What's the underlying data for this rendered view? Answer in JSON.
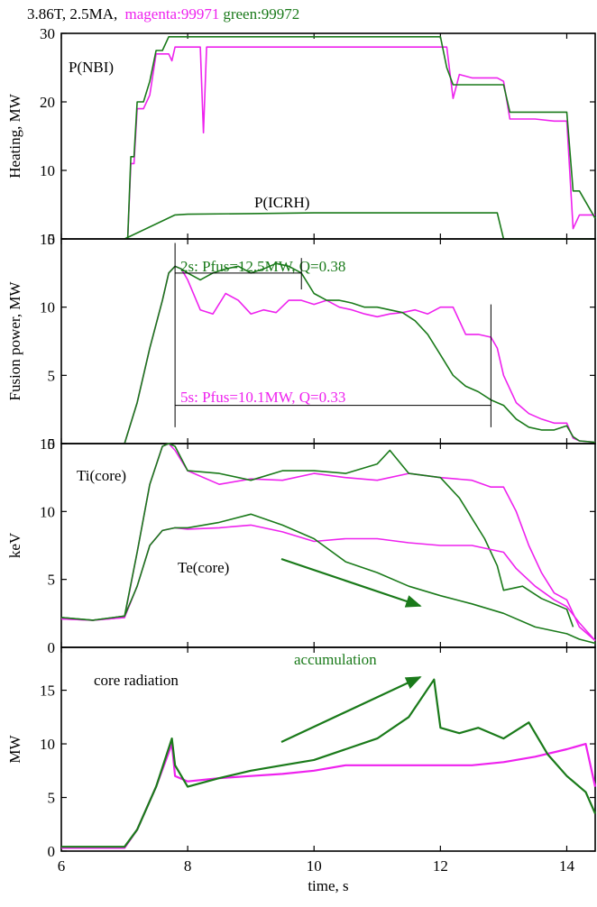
{
  "header": {
    "shot": "3.86T, 2.5MA,",
    "magenta_label": "magenta:99971",
    "green_label": "green:99972"
  },
  "colors": {
    "magenta": "#ee22ee",
    "green": "#1a7a1a",
    "axis": "#000000",
    "box": "#000000"
  },
  "chart_data": [
    {
      "type": "line",
      "ylabel": "Heating, MW",
      "ylim": [
        0,
        30
      ],
      "yticks": [
        0,
        10,
        20,
        30
      ],
      "xlim": [
        6,
        14.45
      ],
      "annotations": [
        "P(NBI)",
        "P(ICRH)"
      ],
      "series": [
        {
          "name": "P(NBI) 99971",
          "color": "magenta",
          "x": [
            7.0,
            7.05,
            7.1,
            7.15,
            7.2,
            7.25,
            7.3,
            7.4,
            7.5,
            7.6,
            7.7,
            7.75,
            7.8,
            8.0,
            8.2,
            8.25,
            8.3,
            8.4,
            8.6,
            8.9,
            9.2,
            9.5,
            9.8,
            10.2,
            10.4,
            10.8,
            11.0,
            11.4,
            11.8,
            12.1,
            12.2,
            12.3,
            12.5,
            12.7,
            12.9,
            13.0,
            13.1,
            13.5,
            13.8,
            14.0,
            14.1,
            14.2,
            14.45
          ],
          "y": [
            0,
            0,
            11,
            11,
            19,
            19,
            19,
            21,
            27,
            27,
            27,
            26,
            28,
            28,
            28,
            15.5,
            28,
            28,
            28,
            28,
            28,
            28,
            28,
            28,
            28,
            28,
            28,
            28,
            28,
            28,
            20.5,
            24,
            23.5,
            23.5,
            23.5,
            23,
            17.5,
            17.5,
            17.2,
            17.2,
            1.5,
            3.5,
            3.5
          ]
        },
        {
          "name": "P(NBI) 99972",
          "color": "green",
          "x": [
            7.0,
            7.05,
            7.1,
            7.15,
            7.2,
            7.25,
            7.3,
            7.4,
            7.5,
            7.6,
            7.7,
            7.8,
            7.9,
            8.2,
            8.5,
            8.8,
            9.2,
            9.6,
            10.0,
            10.4,
            10.8,
            11.2,
            11.6,
            12.0,
            12.1,
            12.2,
            12.5,
            12.8,
            13.0,
            13.1,
            13.5,
            13.8,
            14.0,
            14.1,
            14.2,
            14.45
          ],
          "y": [
            0,
            0,
            12,
            12,
            20,
            20,
            20,
            23,
            27.5,
            27.5,
            29.5,
            29.5,
            29.5,
            29.5,
            29.5,
            29.5,
            29.5,
            29.5,
            29.5,
            29.5,
            29.5,
            29.5,
            29.5,
            29.5,
            25,
            22.5,
            22.5,
            22.5,
            22.5,
            18.5,
            18.5,
            18.5,
            18.5,
            7,
            7,
            3
          ]
        },
        {
          "name": "P(ICRH)",
          "color": "green",
          "x": [
            7.0,
            7.8,
            8.0,
            9.0,
            10.0,
            11.0,
            12.0,
            12.9,
            13.0,
            14.45
          ],
          "y": [
            0,
            3.5,
            3.6,
            3.7,
            3.8,
            3.8,
            3.8,
            3.8,
            0,
            0
          ]
        }
      ]
    },
    {
      "type": "line",
      "ylabel": "Fusion power, MW",
      "ylim": [
        0,
        15
      ],
      "yticks": [
        0,
        5,
        10,
        15
      ],
      "xlim": [
        6,
        14.45
      ],
      "annotations": [
        "2s: Pfus=12.5MW, Q=0.38",
        "5s: Pfus=10.1MW, Q=0.33"
      ],
      "series": [
        {
          "name": "Pfus 99971",
          "color": "magenta",
          "x": [
            7.0,
            7.2,
            7.4,
            7.6,
            7.7,
            7.8,
            7.9,
            8.0,
            8.2,
            8.4,
            8.6,
            8.8,
            9.0,
            9.2,
            9.4,
            9.6,
            9.8,
            10.0,
            10.2,
            10.4,
            10.6,
            10.8,
            11.0,
            11.2,
            11.4,
            11.6,
            11.8,
            12.0,
            12.2,
            12.4,
            12.6,
            12.8,
            12.9,
            13.0,
            13.2,
            13.4,
            13.6,
            13.8,
            14.0,
            14.1,
            14.2,
            14.45
          ],
          "y": [
            0,
            3,
            7,
            10.5,
            12.5,
            13,
            12.8,
            12,
            9.8,
            9.5,
            11,
            10.5,
            9.5,
            9.8,
            9.6,
            10.5,
            10.5,
            10.2,
            10.5,
            10,
            9.8,
            9.5,
            9.3,
            9.5,
            9.6,
            9.8,
            9.5,
            10,
            10,
            8,
            8,
            7.8,
            7,
            5,
            3,
            2.2,
            1.8,
            1.5,
            1.5,
            0.4,
            0.2,
            0.1
          ]
        },
        {
          "name": "Pfus 99972",
          "color": "green",
          "x": [
            7.0,
            7.2,
            7.4,
            7.6,
            7.7,
            7.8,
            7.9,
            8.0,
            8.2,
            8.4,
            8.6,
            8.8,
            9.0,
            9.2,
            9.4,
            9.6,
            9.8,
            10.0,
            10.2,
            10.4,
            10.6,
            10.8,
            11.0,
            11.2,
            11.4,
            11.6,
            11.8,
            12.0,
            12.2,
            12.4,
            12.6,
            12.8,
            13.0,
            13.2,
            13.4,
            13.6,
            13.8,
            14.0,
            14.1,
            14.2,
            14.45
          ],
          "y": [
            0,
            3,
            7,
            10.5,
            12.5,
            13,
            12.8,
            12.5,
            12,
            12.5,
            12.8,
            13,
            12.5,
            12.8,
            13.2,
            13,
            12.5,
            11,
            10.5,
            10.5,
            10.3,
            10,
            10,
            9.8,
            9.6,
            9,
            8,
            6.5,
            5,
            4.2,
            3.8,
            3.2,
            2.8,
            1.8,
            1.2,
            1,
            1,
            1.3,
            0.5,
            0.2,
            0.1
          ]
        }
      ]
    },
    {
      "type": "line",
      "ylabel": "keV",
      "ylim": [
        0,
        15
      ],
      "yticks": [
        0,
        5,
        10,
        15
      ],
      "xlim": [
        6,
        14.45
      ],
      "annotations": [
        "Ti(core)",
        "Te(core)"
      ],
      "series": [
        {
          "name": "Ti(core) 99971",
          "color": "magenta",
          "x": [
            6.0,
            6.5,
            7.0,
            7.2,
            7.4,
            7.6,
            7.7,
            7.8,
            8.0,
            8.5,
            9.0,
            9.5,
            10.0,
            10.5,
            11.0,
            11.5,
            12.0,
            12.5,
            12.8,
            13.0,
            13.2,
            13.4,
            13.6,
            13.8,
            14.0,
            14.2,
            14.45
          ],
          "y": [
            2.1,
            2,
            2.2,
            7,
            12,
            14.8,
            15,
            14.5,
            13,
            12,
            12.4,
            12.3,
            12.8,
            12.5,
            12.3,
            12.8,
            12.5,
            12.3,
            11.8,
            11.8,
            10,
            7.5,
            5.5,
            4,
            3.5,
            1.5,
            0.5
          ]
        },
        {
          "name": "Ti(core) 99972",
          "color": "green",
          "x": [
            6.0,
            6.5,
            7.0,
            7.2,
            7.4,
            7.6,
            7.7,
            7.8,
            8.0,
            8.5,
            9.0,
            9.5,
            10.0,
            10.5,
            11.0,
            11.2,
            11.5,
            12.0,
            12.3,
            12.5,
            12.7,
            12.9,
            13.0,
            13.3,
            13.6,
            13.8,
            14.0,
            14.1
          ],
          "y": [
            2.2,
            2,
            2.3,
            7,
            12,
            14.8,
            15,
            14.8,
            13,
            12.8,
            12.3,
            13,
            13,
            12.8,
            13.5,
            14.5,
            12.8,
            12.5,
            11,
            9.5,
            8,
            6,
            4.2,
            4.5,
            3.6,
            3.2,
            2.8,
            1.5
          ]
        },
        {
          "name": "Te(core) 99971",
          "color": "magenta",
          "x": [
            6.0,
            6.5,
            7.0,
            7.2,
            7.4,
            7.6,
            7.8,
            8.0,
            8.5,
            9.0,
            9.5,
            10.0,
            10.5,
            11.0,
            11.5,
            12.0,
            12.5,
            13.0,
            13.2,
            13.5,
            13.8,
            14.0,
            14.2,
            14.45
          ],
          "y": [
            2.1,
            2,
            2.2,
            4.5,
            7.5,
            8.6,
            8.8,
            8.7,
            8.8,
            9,
            8.5,
            7.8,
            8,
            8,
            7.7,
            7.5,
            7.5,
            7,
            5.8,
            4.5,
            3.5,
            3,
            1.8,
            0.5
          ]
        },
        {
          "name": "Te(core) 99972",
          "color": "green",
          "x": [
            6.0,
            6.5,
            7.0,
            7.2,
            7.4,
            7.6,
            7.8,
            8.0,
            8.5,
            9.0,
            9.5,
            10.0,
            10.5,
            11.0,
            11.5,
            12.0,
            12.5,
            13.0,
            13.5,
            14.0,
            14.2,
            14.45
          ],
          "y": [
            2.2,
            2,
            2.3,
            4.5,
            7.5,
            8.6,
            8.8,
            8.8,
            9.2,
            9.8,
            9,
            8,
            6.3,
            5.5,
            4.5,
            3.8,
            3.2,
            2.5,
            1.5,
            1,
            0.6,
            0.3
          ]
        }
      ]
    },
    {
      "type": "line",
      "ylabel": "MW",
      "xlabel": "time, s",
      "ylim": [
        0,
        19
      ],
      "yticks": [
        0,
        5,
        10,
        15
      ],
      "xlim": [
        6,
        14.45
      ],
      "xticks": [
        6,
        8,
        10,
        12,
        14
      ],
      "annotations": [
        "core radiation",
        "accumulation"
      ],
      "series": [
        {
          "name": "core radiation 99971",
          "color": "magenta",
          "x": [
            6.0,
            7.0,
            7.2,
            7.5,
            7.75,
            7.8,
            8.0,
            8.5,
            9.0,
            9.5,
            10.0,
            10.5,
            11.0,
            11.5,
            12.0,
            12.5,
            13.0,
            13.5,
            14.0,
            14.3,
            14.45
          ],
          "y": [
            0.3,
            0.3,
            2,
            6,
            10,
            7,
            6.5,
            6.8,
            7,
            7.2,
            7.5,
            8,
            8,
            8,
            8,
            8,
            8.3,
            8.8,
            9.5,
            10,
            6
          ]
        },
        {
          "name": "core radiation 99972",
          "color": "green",
          "x": [
            6.0,
            7.0,
            7.2,
            7.5,
            7.75,
            7.8,
            8.0,
            8.5,
            9.0,
            9.5,
            10.0,
            10.5,
            11.0,
            11.5,
            11.9,
            12.0,
            12.3,
            12.6,
            13.0,
            13.4,
            13.7,
            14.0,
            14.3,
            14.45
          ],
          "y": [
            0.4,
            0.4,
            2,
            6,
            10.5,
            8,
            6,
            6.8,
            7.5,
            8,
            8.5,
            9.5,
            10.5,
            12.5,
            16,
            11.5,
            11,
            11.5,
            10.5,
            12,
            9,
            7,
            5.5,
            3.5
          ]
        }
      ]
    }
  ]
}
